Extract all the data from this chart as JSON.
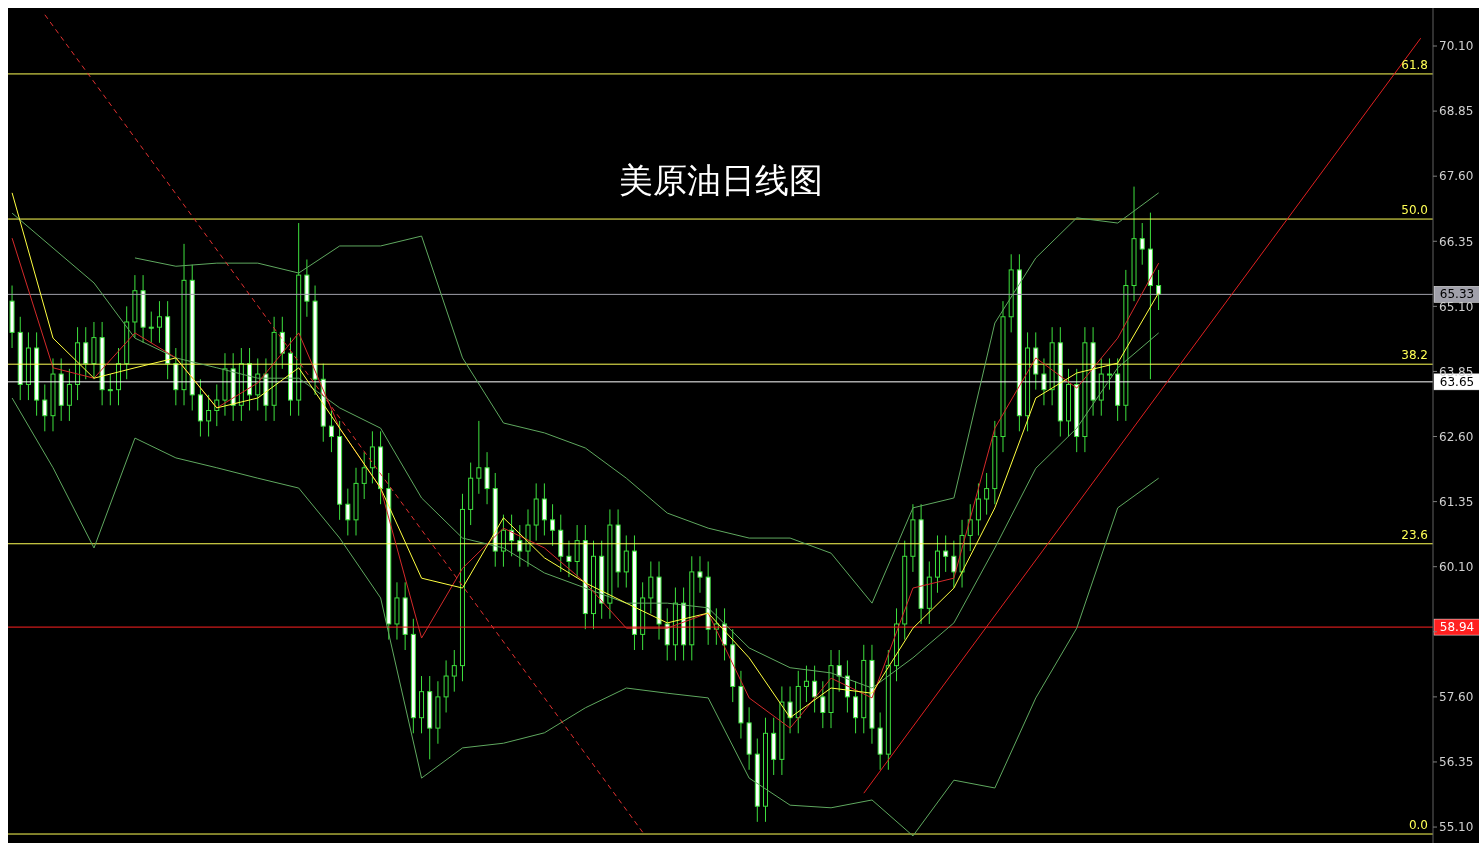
{
  "chart_data": {
    "type": "candlestick",
    "title": "美原油日线图",
    "color": "#3ee03e",
    "categories": [
      null,
      null,
      null,
      null,
      null,
      null,
      null,
      null,
      null,
      null,
      null,
      null,
      null,
      null,
      null,
      null,
      null,
      null,
      null,
      null,
      null,
      null,
      null,
      null,
      null,
      null,
      null,
      null,
      null,
      null,
      null,
      null,
      null,
      null,
      null,
      null,
      null,
      null,
      null,
      null,
      null,
      null,
      null,
      null,
      null,
      null,
      null,
      null,
      null,
      null,
      null,
      null,
      null,
      null,
      null,
      null,
      null,
      null,
      null,
      null,
      null,
      null,
      null,
      null,
      null,
      null,
      null,
      null,
      null,
      null,
      null,
      null,
      null,
      null,
      null,
      null,
      null,
      null,
      null,
      null,
      null,
      null,
      null,
      null,
      null,
      null,
      null,
      null,
      null,
      null,
      null,
      null,
      null,
      null,
      null,
      null,
      null,
      null,
      null,
      null,
      null,
      null,
      null,
      null,
      null,
      null,
      null,
      null,
      null,
      null,
      null,
      null,
      null,
      null,
      null,
      null,
      null,
      null,
      null,
      null,
      null,
      null,
      null,
      null,
      null,
      null,
      null,
      null,
      null,
      null,
      null,
      null,
      null,
      null,
      null,
      null,
      null,
      null,
      null,
      null,
      null,
      null,
      null,
      null,
      null,
      null,
      null,
      null,
      null,
      null,
      null,
      null,
      null,
      null,
      null,
      null,
      null,
      null,
      null,
      null,
      null,
      null,
      null,
      null,
      null,
      null,
      null,
      null,
      null,
      null,
      null,
      null,
      null,
      null
    ],
    "ohlc": [
      [
        65.2,
        65.5,
        64.3,
        64.6
      ],
      [
        64.6,
        64.9,
        63.3,
        63.6
      ],
      [
        63.6,
        64.6,
        63.3,
        64.3
      ],
      [
        64.3,
        64.6,
        63.0,
        63.3
      ],
      [
        63.3,
        63.6,
        62.7,
        63.0
      ],
      [
        63.0,
        64.1,
        62.7,
        63.8
      ],
      [
        63.8,
        64.1,
        62.9,
        63.2
      ],
      [
        63.2,
        63.9,
        62.9,
        63.6
      ],
      [
        63.6,
        64.7,
        63.3,
        64.4
      ],
      [
        64.4,
        64.7,
        63.7,
        64.0
      ],
      [
        64.0,
        64.8,
        63.7,
        64.5
      ],
      [
        64.5,
        64.8,
        63.2,
        63.5
      ],
      [
        63.5,
        63.8,
        63.2,
        63.5
      ],
      [
        63.5,
        64.3,
        63.2,
        64.0
      ],
      [
        64.0,
        65.1,
        63.7,
        64.8
      ],
      [
        64.8,
        65.7,
        64.5,
        65.4
      ],
      [
        65.4,
        65.7,
        64.4,
        64.7
      ],
      [
        64.7,
        65.0,
        64.4,
        64.7
      ],
      [
        64.7,
        65.2,
        64.4,
        64.9
      ],
      [
        64.9,
        65.2,
        63.7,
        64.0
      ],
      [
        64.0,
        64.3,
        63.2,
        63.5
      ],
      [
        63.5,
        66.3,
        63.2,
        65.6
      ],
      [
        65.6,
        65.9,
        63.1,
        63.4
      ],
      [
        63.4,
        63.7,
        62.6,
        62.9
      ],
      [
        62.9,
        63.4,
        62.6,
        63.1
      ],
      [
        63.1,
        63.6,
        62.8,
        63.3
      ],
      [
        63.3,
        64.2,
        63.0,
        63.9
      ],
      [
        63.9,
        64.2,
        62.9,
        63.2
      ],
      [
        63.2,
        64.3,
        62.9,
        64.0
      ],
      [
        64.0,
        64.3,
        63.1,
        63.4
      ],
      [
        63.4,
        64.1,
        63.1,
        63.8
      ],
      [
        63.8,
        64.1,
        62.9,
        63.2
      ],
      [
        63.2,
        64.9,
        62.9,
        64.6
      ],
      [
        64.6,
        64.9,
        63.9,
        64.2
      ],
      [
        64.2,
        64.5,
        63.0,
        63.3
      ],
      [
        63.3,
        66.7,
        63.0,
        65.7
      ],
      [
        65.7,
        66.0,
        64.9,
        65.2
      ],
      [
        65.2,
        65.5,
        63.4,
        63.7
      ],
      [
        63.7,
        64.0,
        62.5,
        62.8
      ],
      [
        62.8,
        63.1,
        62.3,
        62.6
      ],
      [
        62.6,
        62.9,
        61.0,
        61.3
      ],
      [
        61.3,
        61.6,
        60.7,
        61.0
      ],
      [
        61.0,
        62.0,
        60.7,
        61.7
      ],
      [
        61.7,
        62.3,
        61.4,
        62.0
      ],
      [
        62.0,
        62.7,
        61.7,
        62.4
      ],
      [
        62.4,
        62.7,
        61.3,
        61.6
      ],
      [
        61.6,
        61.9,
        58.7,
        59.0
      ],
      [
        59.0,
        59.8,
        58.7,
        59.5
      ],
      [
        59.5,
        59.8,
        58.5,
        58.8
      ],
      [
        58.8,
        59.1,
        56.9,
        57.2
      ],
      [
        57.2,
        58.0,
        56.9,
        57.7
      ],
      [
        57.7,
        58.0,
        56.4,
        57.0
      ],
      [
        57.0,
        57.9,
        56.7,
        57.6
      ],
      [
        57.6,
        58.3,
        57.3,
        58.0
      ],
      [
        58.0,
        58.5,
        57.7,
        58.2
      ],
      [
        58.2,
        61.5,
        57.9,
        61.2
      ],
      [
        61.2,
        62.1,
        60.9,
        61.8
      ],
      [
        61.8,
        62.9,
        61.5,
        62.0
      ],
      [
        62.0,
        62.3,
        61.3,
        61.6
      ],
      [
        61.6,
        61.9,
        60.1,
        60.4
      ],
      [
        60.4,
        61.1,
        60.1,
        60.8
      ],
      [
        60.8,
        61.1,
        60.3,
        60.6
      ],
      [
        60.6,
        60.9,
        60.1,
        60.4
      ],
      [
        60.4,
        61.2,
        60.1,
        60.9
      ],
      [
        60.9,
        61.7,
        60.6,
        61.4
      ],
      [
        61.4,
        61.7,
        60.7,
        61.0
      ],
      [
        61.0,
        61.3,
        60.5,
        60.8
      ],
      [
        60.8,
        61.1,
        60.0,
        60.3
      ],
      [
        60.3,
        60.6,
        59.9,
        60.2
      ],
      [
        60.2,
        60.9,
        59.9,
        60.6
      ],
      [
        60.6,
        60.9,
        58.9,
        59.2
      ],
      [
        59.2,
        60.6,
        58.9,
        60.3
      ],
      [
        60.3,
        60.6,
        59.1,
        59.4
      ],
      [
        59.4,
        61.2,
        59.1,
        60.9
      ],
      [
        60.9,
        61.2,
        59.7,
        60.0
      ],
      [
        60.0,
        60.7,
        59.7,
        60.4
      ],
      [
        60.4,
        60.7,
        58.5,
        58.8
      ],
      [
        58.8,
        59.8,
        58.5,
        59.5
      ],
      [
        59.5,
        60.2,
        59.2,
        59.9
      ],
      [
        59.9,
        60.2,
        58.7,
        59.0
      ],
      [
        59.0,
        59.3,
        58.3,
        58.6
      ],
      [
        58.6,
        59.7,
        58.3,
        59.4
      ],
      [
        59.4,
        59.7,
        58.3,
        58.6
      ],
      [
        58.6,
        60.3,
        58.3,
        60.0
      ],
      [
        60.0,
        60.3,
        59.6,
        59.9
      ],
      [
        59.9,
        60.2,
        58.6,
        58.9
      ],
      [
        58.9,
        59.3,
        58.6,
        59.0
      ],
      [
        59.0,
        59.3,
        58.3,
        58.6
      ],
      [
        58.6,
        58.9,
        57.5,
        57.8
      ],
      [
        57.8,
        58.1,
        56.8,
        57.1
      ],
      [
        57.1,
        57.4,
        56.2,
        56.5
      ],
      [
        56.5,
        56.8,
        55.2,
        55.5
      ],
      [
        55.5,
        57.2,
        55.2,
        56.9
      ],
      [
        56.9,
        57.2,
        56.1,
        56.4
      ],
      [
        56.4,
        57.8,
        56.1,
        57.5
      ],
      [
        57.5,
        57.8,
        56.9,
        57.2
      ],
      [
        57.2,
        58.1,
        56.9,
        57.8
      ],
      [
        57.8,
        58.2,
        57.5,
        57.9
      ],
      [
        57.9,
        58.2,
        57.3,
        57.6
      ],
      [
        57.6,
        57.9,
        57.0,
        57.3
      ],
      [
        57.3,
        58.5,
        57.0,
        58.2
      ],
      [
        58.2,
        58.5,
        57.7,
        58.0
      ],
      [
        58.0,
        58.3,
        57.3,
        57.6
      ],
      [
        57.6,
        57.9,
        56.9,
        57.2
      ],
      [
        57.2,
        58.6,
        56.9,
        58.3
      ],
      [
        58.3,
        58.6,
        56.7,
        57.0
      ],
      [
        57.0,
        57.3,
        56.2,
        56.5
      ],
      [
        56.5,
        58.5,
        56.2,
        58.2
      ],
      [
        58.2,
        59.3,
        57.9,
        59.0
      ],
      [
        59.0,
        60.6,
        58.7,
        60.3
      ],
      [
        60.3,
        61.3,
        60.0,
        61.0
      ],
      [
        61.0,
        61.3,
        59.0,
        59.3
      ],
      [
        59.3,
        60.2,
        59.0,
        59.9
      ],
      [
        59.9,
        60.7,
        59.6,
        60.4
      ],
      [
        60.4,
        60.7,
        60.0,
        60.3
      ],
      [
        60.3,
        60.6,
        59.7,
        60.0
      ],
      [
        60.0,
        61.0,
        59.7,
        60.7
      ],
      [
        60.7,
        61.3,
        60.4,
        61.0
      ],
      [
        61.0,
        61.7,
        60.7,
        61.4
      ],
      [
        61.4,
        61.9,
        61.1,
        61.6
      ],
      [
        61.6,
        62.9,
        61.3,
        62.6
      ],
      [
        62.6,
        65.2,
        62.3,
        64.9
      ],
      [
        64.9,
        66.1,
        64.6,
        65.8
      ],
      [
        65.8,
        66.1,
        62.7,
        63.0
      ],
      [
        63.0,
        64.6,
        62.7,
        64.3
      ],
      [
        64.3,
        64.6,
        63.5,
        63.8
      ],
      [
        63.8,
        64.1,
        63.2,
        63.5
      ],
      [
        63.5,
        64.7,
        63.2,
        64.4
      ],
      [
        64.4,
        64.7,
        62.6,
        62.9
      ],
      [
        62.9,
        63.9,
        62.6,
        63.6
      ],
      [
        63.6,
        63.9,
        62.3,
        62.6
      ],
      [
        62.6,
        64.7,
        62.3,
        64.4
      ],
      [
        64.4,
        64.7,
        63.0,
        63.3
      ],
      [
        63.3,
        64.1,
        63.0,
        63.8
      ],
      [
        63.8,
        64.1,
        63.5,
        63.8
      ],
      [
        63.8,
        64.1,
        62.9,
        63.2
      ],
      [
        63.2,
        65.8,
        62.9,
        65.5
      ],
      [
        65.5,
        67.4,
        65.2,
        66.4
      ],
      [
        66.4,
        66.7,
        65.9,
        66.2
      ],
      [
        66.2,
        66.9,
        63.7,
        65.5
      ],
      [
        65.5,
        65.8,
        65.03,
        65.33
      ],
      null,
      null,
      null,
      null,
      null,
      null,
      null,
      null,
      null,
      null,
      null,
      null,
      null,
      null,
      null,
      null,
      null,
      null,
      null,
      null,
      null,
      null,
      null,
      null,
      null,
      null,
      null,
      null,
      null,
      null,
      null,
      null,
      null
    ],
    "series": [
      {
        "type": "line",
        "color": "#5fa85f",
        "values": [
          null,
          null,
          null,
          null,
          null,
          null,
          null,
          null,
          null,
          null,
          null,
          null,
          null,
          null,
          null,
          66.03,
          null,
          null,
          null,
          null,
          65.87,
          null,
          null,
          null,
          null,
          65.93,
          null,
          null,
          null,
          null,
          65.93,
          null,
          null,
          null,
          null,
          65.74,
          null,
          null,
          null,
          null,
          66.26,
          null,
          null,
          null,
          null,
          66.26,
          null,
          null,
          null,
          null,
          66.45,
          null,
          null,
          null,
          null,
          64.11,
          null,
          null,
          null,
          null,
          62.86,
          null,
          null,
          null,
          null,
          62.67,
          null,
          null,
          null,
          null,
          62.38,
          null,
          null,
          null,
          null,
          61.8,
          null,
          null,
          null,
          null,
          61.13,
          null,
          null,
          null,
          null,
          60.84,
          null,
          null,
          null,
          null,
          60.65,
          null,
          null,
          null,
          null,
          60.65,
          null,
          null,
          null,
          null,
          60.36,
          null,
          null,
          null,
          null,
          59.4,
          null,
          null,
          null,
          null,
          61.23,
          null,
          null,
          null,
          null,
          61.42,
          null,
          null,
          null,
          null,
          64.78,
          null,
          null,
          null,
          null,
          66.03,
          null,
          null,
          null,
          null,
          66.8,
          null,
          null,
          null,
          null,
          66.7,
          null,
          null,
          null,
          null,
          67.28,
          null,
          null,
          null,
          null,
          null,
          null,
          null,
          null,
          null,
          null,
          null,
          null,
          null,
          null,
          null,
          null,
          null,
          null,
          null,
          null,
          null,
          null,
          null,
          null,
          null,
          null,
          null,
          null,
          null,
          null,
          null,
          null,
          null
        ]
      },
      {
        "type": "line",
        "color": "#5fa85f",
        "values": [
          66.89,
          null,
          null,
          null,
          null,
          66.22,
          null,
          null,
          null,
          null,
          65.55,
          null,
          null,
          null,
          null,
          64.49,
          null,
          null,
          null,
          null,
          64.11,
          null,
          null,
          null,
          null,
          63.92,
          null,
          null,
          null,
          null,
          63.72,
          null,
          null,
          null,
          null,
          63.72,
          null,
          null,
          null,
          null,
          63.15,
          null,
          null,
          null,
          null,
          62.76,
          null,
          null,
          null,
          null,
          61.42,
          null,
          null,
          null,
          null,
          60.65,
          null,
          null,
          null,
          null,
          60.46,
          null,
          null,
          null,
          null,
          59.98,
          null,
          null,
          null,
          null,
          59.69,
          null,
          null,
          null,
          null,
          59.4,
          null,
          null,
          null,
          null,
          59.4,
          null,
          null,
          null,
          null,
          59.31,
          null,
          null,
          null,
          null,
          58.54,
          null,
          null,
          null,
          null,
          58.16,
          null,
          null,
          null,
          null,
          58.06,
          null,
          null,
          null,
          null,
          57.77,
          null,
          null,
          null,
          null,
          58.35,
          null,
          null,
          null,
          null,
          59.02,
          null,
          null,
          null,
          null,
          60.46,
          null,
          null,
          null,
          null,
          61.99,
          null,
          null,
          null,
          null,
          62.76,
          null,
          null,
          null,
          null,
          63.92,
          null,
          null,
          null,
          null,
          64.59,
          null,
          null,
          null,
          null,
          null,
          null,
          null,
          null,
          null,
          null,
          null,
          null,
          null,
          null,
          null,
          null,
          null,
          null,
          null,
          null,
          null,
          null,
          null,
          null,
          null,
          null,
          null,
          null,
          null,
          null,
          null,
          null,
          null
        ]
      },
      {
        "type": "line",
        "color": "#5fa85f",
        "values": [
          63.34,
          null,
          null,
          null,
          null,
          62.0,
          null,
          null,
          null,
          null,
          60.46,
          null,
          null,
          null,
          null,
          62.57,
          null,
          null,
          null,
          null,
          62.19,
          null,
          null,
          null,
          null,
          62.0,
          null,
          null,
          null,
          null,
          61.8,
          null,
          null,
          null,
          null,
          61.61,
          null,
          null,
          null,
          null,
          60.65,
          null,
          null,
          null,
          null,
          59.5,
          null,
          null,
          null,
          null,
          56.04,
          null,
          null,
          null,
          null,
          56.62,
          null,
          null,
          null,
          null,
          56.71,
          null,
          null,
          null,
          null,
          56.91,
          null,
          null,
          null,
          null,
          57.39,
          null,
          null,
          null,
          null,
          57.77,
          null,
          null,
          null,
          null,
          57.67,
          null,
          null,
          null,
          null,
          57.58,
          null,
          null,
          null,
          null,
          56.04,
          null,
          null,
          null,
          null,
          55.52,
          null,
          null,
          null,
          null,
          55.47,
          null,
          null,
          null,
          null,
          55.62,
          null,
          null,
          null,
          null,
          54.93,
          null,
          null,
          null,
          null,
          56.0,
          null,
          null,
          null,
          null,
          55.85,
          null,
          null,
          null,
          null,
          57.58,
          null,
          null,
          null,
          null,
          58.92,
          null,
          null,
          null,
          null,
          61.23,
          null,
          null,
          null,
          null,
          61.8,
          null,
          null,
          null,
          null,
          null,
          null,
          null,
          null,
          null,
          null,
          null,
          null,
          null,
          null,
          null,
          null,
          null,
          null,
          null,
          null,
          null,
          null,
          null,
          null,
          null,
          null,
          null,
          null,
          null,
          null,
          null,
          null,
          null
        ]
      },
      {
        "type": "line",
        "color": "#d42a2a",
        "values": [
          66.41,
          null,
          null,
          null,
          null,
          63.92,
          null,
          null,
          null,
          null,
          63.72,
          null,
          null,
          null,
          null,
          64.59,
          null,
          null,
          null,
          null,
          64.11,
          null,
          null,
          null,
          null,
          63.15,
          null,
          null,
          null,
          null,
          63.63,
          null,
          null,
          null,
          null,
          64.59,
          null,
          null,
          null,
          null,
          62.76,
          null,
          null,
          null,
          null,
          61.61,
          null,
          null,
          null,
          null,
          58.73,
          null,
          null,
          null,
          null,
          60.07,
          null,
          null,
          null,
          null,
          60.84,
          null,
          null,
          null,
          null,
          60.46,
          null,
          null,
          null,
          null,
          59.79,
          null,
          null,
          null,
          null,
          58.92,
          null,
          null,
          null,
          null,
          58.92,
          null,
          null,
          null,
          null,
          59.21,
          null,
          null,
          null,
          null,
          57.58,
          null,
          null,
          null,
          null,
          57.0,
          null,
          null,
          null,
          null,
          57.96,
          null,
          null,
          null,
          null,
          57.58,
          null,
          null,
          null,
          null,
          59.69,
          null,
          null,
          null,
          null,
          59.88,
          null,
          null,
          null,
          null,
          62.76,
          null,
          null,
          null,
          null,
          64.11,
          null,
          null,
          null,
          null,
          63.53,
          null,
          null,
          null,
          null,
          64.49,
          null,
          null,
          null,
          null,
          65.93,
          null,
          null,
          null,
          null,
          null,
          null,
          null,
          null,
          null,
          null,
          null,
          null,
          null,
          null,
          null,
          null,
          null,
          null,
          null,
          null,
          null,
          null,
          null,
          null,
          null,
          null,
          null,
          null,
          null,
          null,
          null,
          null,
          null
        ]
      },
      {
        "type": "line",
        "color": "#ffff40",
        "values": [
          67.28,
          null,
          null,
          null,
          null,
          64.49,
          null,
          null,
          null,
          null,
          63.72,
          null,
          null,
          null,
          null,
          63.92,
          null,
          null,
          null,
          null,
          64.11,
          null,
          null,
          null,
          null,
          63.15,
          null,
          null,
          null,
          null,
          63.34,
          null,
          null,
          null,
          null,
          63.92,
          null,
          null,
          null,
          null,
          62.76,
          null,
          null,
          null,
          null,
          61.61,
          null,
          null,
          null,
          null,
          59.88,
          null,
          null,
          null,
          null,
          59.69,
          null,
          null,
          null,
          null,
          61.04,
          null,
          null,
          null,
          null,
          60.27,
          null,
          null,
          null,
          null,
          59.79,
          null,
          null,
          null,
          null,
          59.4,
          null,
          null,
          null,
          null,
          59.02,
          null,
          null,
          null,
          null,
          59.21,
          null,
          null,
          null,
          null,
          58.35,
          null,
          null,
          null,
          null,
          57.2,
          null,
          null,
          null,
          null,
          57.77,
          null,
          null,
          null,
          null,
          57.67,
          null,
          null,
          null,
          null,
          58.92,
          null,
          null,
          null,
          null,
          59.69,
          null,
          null,
          null,
          null,
          61.23,
          null,
          null,
          null,
          null,
          63.34,
          null,
          null,
          null,
          null,
          63.82,
          null,
          null,
          null,
          null,
          64.01,
          null,
          null,
          null,
          null,
          65.36,
          null,
          null,
          null,
          null,
          null,
          null,
          null,
          null,
          null,
          null,
          null,
          null,
          null,
          null,
          null,
          null,
          null,
          null,
          null,
          null,
          null,
          null,
          null,
          null,
          null,
          null,
          null,
          null,
          null,
          null,
          null,
          null,
          null
        ]
      },
      {
        "type": "line",
        "color": "#e03030",
        "line_style": "dashed",
        "values": [
          null,
          null,
          null,
          null,
          70.7,
          null,
          null,
          null,
          null,
          null,
          null,
          null,
          null,
          null,
          null,
          null,
          null,
          null,
          null,
          null,
          null,
          null,
          null,
          null,
          null,
          null,
          null,
          null,
          null,
          null,
          null,
          null,
          null,
          null,
          null,
          null,
          null,
          null,
          null,
          null,
          null,
          null,
          null,
          null,
          null,
          null,
          null,
          null,
          null,
          null,
          null,
          null,
          null,
          null,
          null,
          null,
          null,
          null,
          null,
          null,
          null,
          null,
          null,
          null,
          null,
          null,
          null,
          null,
          null,
          null,
          null,
          null,
          null,
          null,
          null,
          null,
          null,
          55.0,
          null,
          null,
          null,
          null,
          null,
          null,
          null,
          null,
          null,
          null,
          null,
          null,
          null,
          null,
          null,
          null,
          null,
          null,
          null,
          null,
          null,
          null,
          null,
          null,
          null,
          null,
          null,
          null,
          null,
          null,
          null,
          null,
          null,
          null,
          null,
          null,
          null,
          null,
          null,
          null,
          null,
          null,
          null,
          null,
          null,
          null,
          null,
          null,
          null,
          null,
          null,
          null,
          null,
          null,
          null,
          null,
          null,
          null,
          null,
          null,
          null,
          null,
          null,
          null,
          null,
          null,
          null,
          null,
          null,
          null,
          null,
          null,
          null,
          null,
          null,
          null,
          null,
          null,
          null,
          null,
          null,
          null,
          null,
          null,
          null,
          null,
          null,
          null,
          null,
          null,
          null,
          null,
          null,
          null,
          null,
          null
        ]
      },
      {
        "type": "line",
        "color": "#e02020",
        "line_style": "solid",
        "values": [
          null,
          null,
          null,
          null,
          null,
          null,
          null,
          null,
          null,
          null,
          null,
          null,
          null,
          null,
          null,
          null,
          null,
          null,
          null,
          null,
          null,
          null,
          null,
          null,
          null,
          null,
          null,
          null,
          null,
          null,
          null,
          null,
          null,
          null,
          null,
          null,
          null,
          null,
          null,
          null,
          null,
          null,
          null,
          null,
          null,
          null,
          null,
          null,
          null,
          null,
          null,
          null,
          null,
          null,
          null,
          null,
          null,
          null,
          null,
          null,
          null,
          null,
          null,
          null,
          null,
          null,
          null,
          null,
          null,
          null,
          null,
          null,
          null,
          null,
          null,
          null,
          null,
          null,
          null,
          null,
          null,
          null,
          null,
          null,
          null,
          null,
          null,
          null,
          null,
          null,
          null,
          null,
          null,
          null,
          null,
          null,
          null,
          null,
          null,
          null,
          null,
          null,
          null,
          null,
          55.75,
          null,
          null,
          null,
          null,
          null,
          null,
          null,
          null,
          null,
          null,
          null,
          null,
          null,
          null,
          null,
          null,
          null,
          null,
          null,
          null,
          null,
          null,
          null,
          null,
          null,
          null,
          null,
          null,
          null,
          null,
          null,
          null,
          null,
          null,
          null,
          null,
          null,
          null,
          null,
          null,
          null,
          null,
          null,
          null,
          null,
          null,
          null,
          null,
          null,
          null,
          null,
          null,
          null,
          null,
          null,
          null,
          null,
          null,
          null,
          null,
          null,
          null,
          null,
          null,
          null,
          null,
          null,
          70.25,
          null
        ]
      }
    ],
    "ylim": [
      54.64,
      70.83
    ],
    "yticks": [
      {
        "value": 55.1,
        "label": "55.10"
      },
      {
        "value": 56.35,
        "label": "56.35"
      },
      {
        "value": 57.6,
        "label": "57.60"
      },
      {
        "value": 58.85,
        "label": null
      },
      {
        "value": 60.1,
        "label": "60.10"
      },
      {
        "value": 61.35,
        "label": "61.35"
      },
      {
        "value": 62.6,
        "label": "62.60"
      },
      {
        "value": 63.85,
        "label": "63.85"
      },
      {
        "value": 65.1,
        "label": "65.10"
      },
      {
        "value": 66.35,
        "label": "66.35"
      },
      {
        "value": 67.6,
        "label": "67.60"
      },
      {
        "value": 68.85,
        "label": "68.85"
      },
      {
        "value": 70.1,
        "label": "70.10"
      }
    ],
    "y2lim": [
      -1.38,
      67.16
    ],
    "tick_labels": "y",
    "ref_lines": [
      {
        "axis": "y2",
        "value": 61.8,
        "label": "61.8",
        "color": "#ffff55"
      },
      {
        "axis": "y2",
        "value": 50.0,
        "label": "50.0",
        "color": "#ffff55"
      },
      {
        "axis": "y2",
        "value": 38.2,
        "label": "38.2",
        "color": "#ffff55"
      },
      {
        "axis": "y2",
        "value": 23.6,
        "label": "23.6",
        "color": "#ffff55"
      },
      {
        "axis": "y2",
        "value": 0.0,
        "label": "0.0",
        "color": "#ffff55"
      },
      {
        "axis": "y",
        "value": 65.33,
        "label": "65.33",
        "color": "#a0a0aa"
      },
      {
        "axis": "y",
        "value": 63.65,
        "label": "63.65",
        "color": "#ffffff"
      },
      {
        "axis": "y",
        "value": 58.94,
        "label": "58.94",
        "color": "#ff2020"
      }
    ]
  }
}
